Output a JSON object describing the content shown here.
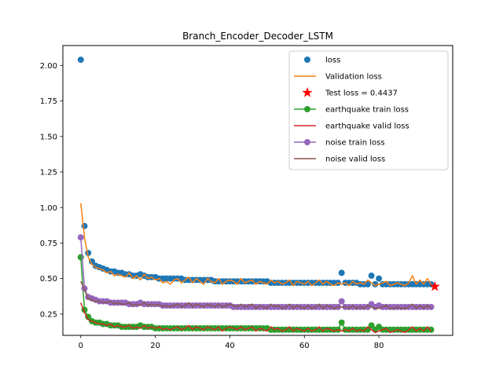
{
  "chart_data": {
    "type": "scatter",
    "title": "Branch_Encoder_Decoder_LSTM",
    "xlabel": "",
    "ylabel": "",
    "xlim": [
      -4.8,
      99.8
    ],
    "ylim": [
      0.1,
      2.14
    ],
    "x_ticks": [
      0,
      20,
      40,
      60,
      80
    ],
    "y_ticks": [
      0.25,
      0.5,
      0.75,
      1.0,
      1.25,
      1.5,
      1.75,
      2.0
    ],
    "x_tick_labels": [
      "0",
      "20",
      "40",
      "60",
      "80"
    ],
    "y_tick_labels": [
      "0.25",
      "0.50",
      "0.75",
      "1.00",
      "1.25",
      "1.50",
      "1.75",
      "2.00"
    ],
    "grid": false,
    "legend_position": "upper right",
    "series": [
      {
        "name": "loss",
        "style": "markers",
        "color": "#1f77b4",
        "x": [
          0,
          1,
          2,
          3,
          4,
          5,
          6,
          7,
          8,
          9,
          10,
          11,
          12,
          13,
          14,
          15,
          16,
          17,
          18,
          19,
          20,
          21,
          22,
          23,
          24,
          25,
          26,
          27,
          28,
          29,
          30,
          31,
          32,
          33,
          34,
          35,
          36,
          37,
          38,
          39,
          40,
          41,
          42,
          43,
          44,
          45,
          46,
          47,
          48,
          49,
          50,
          51,
          52,
          53,
          54,
          55,
          56,
          57,
          58,
          59,
          60,
          61,
          62,
          63,
          64,
          65,
          66,
          67,
          68,
          69,
          70,
          71,
          72,
          73,
          74,
          75,
          76,
          77,
          78,
          79,
          80,
          81,
          82,
          83,
          84,
          85,
          86,
          87,
          88,
          89,
          90,
          91,
          92,
          93,
          94
        ],
        "y": [
          2.04,
          0.87,
          0.68,
          0.62,
          0.59,
          0.58,
          0.57,
          0.56,
          0.55,
          0.55,
          0.54,
          0.54,
          0.53,
          0.53,
          0.52,
          0.52,
          0.53,
          0.52,
          0.51,
          0.51,
          0.51,
          0.5,
          0.5,
          0.5,
          0.5,
          0.5,
          0.5,
          0.5,
          0.49,
          0.49,
          0.49,
          0.49,
          0.49,
          0.49,
          0.49,
          0.49,
          0.48,
          0.48,
          0.48,
          0.48,
          0.48,
          0.48,
          0.48,
          0.48,
          0.48,
          0.48,
          0.48,
          0.48,
          0.48,
          0.48,
          0.48,
          0.47,
          0.47,
          0.47,
          0.47,
          0.47,
          0.47,
          0.47,
          0.47,
          0.47,
          0.47,
          0.47,
          0.47,
          0.47,
          0.47,
          0.47,
          0.47,
          0.47,
          0.47,
          0.47,
          0.54,
          0.47,
          0.47,
          0.47,
          0.47,
          0.46,
          0.46,
          0.46,
          0.52,
          0.46,
          0.5,
          0.46,
          0.46,
          0.46,
          0.46,
          0.46,
          0.46,
          0.46,
          0.46,
          0.46,
          0.46,
          0.46,
          0.46,
          0.46,
          0.46
        ]
      },
      {
        "name": "Validation loss",
        "style": "line",
        "color": "#ff7f0e",
        "x": [
          0,
          1,
          2,
          3,
          4,
          5,
          6,
          7,
          8,
          9,
          10,
          11,
          12,
          13,
          14,
          15,
          16,
          17,
          18,
          19,
          20,
          21,
          22,
          23,
          24,
          25,
          26,
          27,
          28,
          29,
          30,
          31,
          32,
          33,
          34,
          35,
          36,
          37,
          38,
          39,
          40,
          41,
          42,
          43,
          44,
          45,
          46,
          47,
          48,
          49,
          50,
          51,
          52,
          53,
          54,
          55,
          56,
          57,
          58,
          59,
          60,
          61,
          62,
          63,
          64,
          65,
          66,
          67,
          68,
          69,
          70,
          71,
          72,
          73,
          74,
          75,
          76,
          77,
          78,
          79,
          80,
          81,
          82,
          83,
          84,
          85,
          86,
          87,
          88,
          89,
          90,
          91,
          92,
          93,
          94
        ],
        "y": [
          1.03,
          0.79,
          0.65,
          0.6,
          0.58,
          0.57,
          0.56,
          0.54,
          0.55,
          0.52,
          0.53,
          0.52,
          0.51,
          0.54,
          0.5,
          0.52,
          0.49,
          0.53,
          0.5,
          0.51,
          0.49,
          0.5,
          0.47,
          0.48,
          0.46,
          0.49,
          0.5,
          0.47,
          0.49,
          0.51,
          0.47,
          0.5,
          0.48,
          0.46,
          0.5,
          0.48,
          0.47,
          0.5,
          0.46,
          0.48,
          0.49,
          0.48,
          0.46,
          0.5,
          0.47,
          0.48,
          0.49,
          0.46,
          0.48,
          0.47,
          0.46,
          0.49,
          0.47,
          0.48,
          0.46,
          0.47,
          0.49,
          0.45,
          0.48,
          0.47,
          0.46,
          0.48,
          0.45,
          0.47,
          0.49,
          0.46,
          0.48,
          0.46,
          0.45,
          0.47,
          0.46,
          0.47,
          0.45,
          0.48,
          0.46,
          0.47,
          0.46,
          0.49,
          0.47,
          0.45,
          0.46,
          0.47,
          0.48,
          0.45,
          0.46,
          0.47,
          0.46,
          0.45,
          0.47,
          0.52,
          0.46,
          0.49,
          0.46,
          0.5,
          0.46
        ]
      },
      {
        "name": "Test loss = 0.4437",
        "style": "star",
        "color": "#ff0000",
        "x": [
          95
        ],
        "y": [
          0.4437
        ]
      },
      {
        "name": "earthquake train loss",
        "style": "line-markers",
        "color": "#2ca02c",
        "x": [
          0,
          1,
          2,
          3,
          4,
          5,
          6,
          7,
          8,
          9,
          10,
          11,
          12,
          13,
          14,
          15,
          16,
          17,
          18,
          19,
          20,
          21,
          22,
          23,
          24,
          25,
          26,
          27,
          28,
          29,
          30,
          31,
          32,
          33,
          34,
          35,
          36,
          37,
          38,
          39,
          40,
          41,
          42,
          43,
          44,
          45,
          46,
          47,
          48,
          49,
          50,
          51,
          52,
          53,
          54,
          55,
          56,
          57,
          58,
          59,
          60,
          61,
          62,
          63,
          64,
          65,
          66,
          67,
          68,
          69,
          70,
          71,
          72,
          73,
          74,
          75,
          76,
          77,
          78,
          79,
          80,
          81,
          82,
          83,
          84,
          85,
          86,
          87,
          88,
          89,
          90,
          91,
          92,
          93,
          94
        ],
        "y": [
          0.65,
          0.28,
          0.23,
          0.2,
          0.19,
          0.19,
          0.18,
          0.18,
          0.17,
          0.17,
          0.17,
          0.16,
          0.16,
          0.16,
          0.16,
          0.16,
          0.17,
          0.16,
          0.16,
          0.16,
          0.15,
          0.15,
          0.15,
          0.15,
          0.15,
          0.15,
          0.15,
          0.15,
          0.15,
          0.15,
          0.15,
          0.15,
          0.15,
          0.15,
          0.15,
          0.15,
          0.15,
          0.15,
          0.15,
          0.15,
          0.15,
          0.15,
          0.15,
          0.15,
          0.15,
          0.15,
          0.15,
          0.15,
          0.15,
          0.15,
          0.15,
          0.14,
          0.14,
          0.14,
          0.14,
          0.14,
          0.14,
          0.14,
          0.14,
          0.14,
          0.14,
          0.14,
          0.14,
          0.14,
          0.14,
          0.14,
          0.14,
          0.14,
          0.14,
          0.14,
          0.19,
          0.14,
          0.14,
          0.14,
          0.14,
          0.14,
          0.14,
          0.14,
          0.17,
          0.14,
          0.16,
          0.14,
          0.14,
          0.14,
          0.14,
          0.14,
          0.14,
          0.14,
          0.14,
          0.14,
          0.14,
          0.14,
          0.14,
          0.14,
          0.14
        ]
      },
      {
        "name": "earthquake valid loss",
        "style": "line",
        "color": "#d62728",
        "x": [
          0,
          1,
          2,
          3,
          4,
          5,
          6,
          7,
          8,
          9,
          10,
          11,
          12,
          13,
          14,
          15,
          16,
          17,
          18,
          19,
          20,
          21,
          22,
          23,
          24,
          25,
          26,
          27,
          28,
          29,
          30,
          31,
          32,
          33,
          34,
          35,
          36,
          37,
          38,
          39,
          40,
          41,
          42,
          43,
          44,
          45,
          46,
          47,
          48,
          49,
          50,
          51,
          52,
          53,
          54,
          55,
          56,
          57,
          58,
          59,
          60,
          61,
          62,
          63,
          64,
          65,
          66,
          67,
          68,
          69,
          70,
          71,
          72,
          73,
          74,
          75,
          76,
          77,
          78,
          79,
          80,
          81,
          82,
          83,
          84,
          85,
          86,
          87,
          88,
          89,
          90,
          91,
          92,
          93,
          94
        ],
        "y": [
          0.33,
          0.26,
          0.21,
          0.2,
          0.19,
          0.18,
          0.18,
          0.17,
          0.18,
          0.16,
          0.17,
          0.16,
          0.16,
          0.17,
          0.15,
          0.16,
          0.15,
          0.17,
          0.15,
          0.16,
          0.15,
          0.16,
          0.14,
          0.15,
          0.14,
          0.15,
          0.16,
          0.14,
          0.15,
          0.17,
          0.14,
          0.16,
          0.15,
          0.14,
          0.16,
          0.15,
          0.14,
          0.16,
          0.13,
          0.15,
          0.16,
          0.15,
          0.14,
          0.16,
          0.14,
          0.15,
          0.16,
          0.13,
          0.15,
          0.14,
          0.13,
          0.16,
          0.14,
          0.15,
          0.13,
          0.14,
          0.16,
          0.13,
          0.15,
          0.14,
          0.13,
          0.15,
          0.13,
          0.14,
          0.16,
          0.13,
          0.15,
          0.14,
          0.13,
          0.14,
          0.13,
          0.14,
          0.13,
          0.15,
          0.13,
          0.14,
          0.13,
          0.16,
          0.14,
          0.12,
          0.13,
          0.14,
          0.15,
          0.12,
          0.13,
          0.14,
          0.13,
          0.12,
          0.14,
          0.16,
          0.13,
          0.15,
          0.13,
          0.16,
          0.13
        ]
      },
      {
        "name": "noise train loss",
        "style": "line-markers",
        "color": "#9467bd",
        "x": [
          0,
          1,
          2,
          3,
          4,
          5,
          6,
          7,
          8,
          9,
          10,
          11,
          12,
          13,
          14,
          15,
          16,
          17,
          18,
          19,
          20,
          21,
          22,
          23,
          24,
          25,
          26,
          27,
          28,
          29,
          30,
          31,
          32,
          33,
          34,
          35,
          36,
          37,
          38,
          39,
          40,
          41,
          42,
          43,
          44,
          45,
          46,
          47,
          48,
          49,
          50,
          51,
          52,
          53,
          54,
          55,
          56,
          57,
          58,
          59,
          60,
          61,
          62,
          63,
          64,
          65,
          66,
          67,
          68,
          69,
          70,
          71,
          72,
          73,
          74,
          75,
          76,
          77,
          78,
          79,
          80,
          81,
          82,
          83,
          84,
          85,
          86,
          87,
          88,
          89,
          90,
          91,
          92,
          93,
          94
        ],
        "y": [
          0.79,
          0.43,
          0.37,
          0.36,
          0.35,
          0.34,
          0.34,
          0.34,
          0.33,
          0.33,
          0.33,
          0.33,
          0.33,
          0.32,
          0.32,
          0.32,
          0.33,
          0.32,
          0.32,
          0.32,
          0.32,
          0.32,
          0.31,
          0.31,
          0.31,
          0.31,
          0.31,
          0.31,
          0.31,
          0.31,
          0.31,
          0.31,
          0.31,
          0.31,
          0.31,
          0.31,
          0.31,
          0.31,
          0.31,
          0.31,
          0.31,
          0.3,
          0.3,
          0.3,
          0.3,
          0.3,
          0.3,
          0.3,
          0.3,
          0.3,
          0.3,
          0.3,
          0.3,
          0.3,
          0.3,
          0.3,
          0.3,
          0.3,
          0.3,
          0.3,
          0.3,
          0.3,
          0.3,
          0.3,
          0.3,
          0.3,
          0.3,
          0.3,
          0.3,
          0.3,
          0.34,
          0.3,
          0.3,
          0.3,
          0.3,
          0.3,
          0.3,
          0.3,
          0.32,
          0.3,
          0.31,
          0.3,
          0.3,
          0.3,
          0.3,
          0.3,
          0.3,
          0.3,
          0.3,
          0.3,
          0.3,
          0.3,
          0.3,
          0.3,
          0.3
        ]
      },
      {
        "name": "noise valid loss",
        "style": "line",
        "color": "#8c564b",
        "x": [
          0,
          1,
          2,
          3,
          4,
          5,
          6,
          7,
          8,
          9,
          10,
          11,
          12,
          13,
          14,
          15,
          16,
          17,
          18,
          19,
          20,
          21,
          22,
          23,
          24,
          25,
          26,
          27,
          28,
          29,
          30,
          31,
          32,
          33,
          34,
          35,
          36,
          37,
          38,
          39,
          40,
          41,
          42,
          43,
          44,
          45,
          46,
          47,
          48,
          49,
          50,
          51,
          52,
          53,
          54,
          55,
          56,
          57,
          58,
          59,
          60,
          61,
          62,
          63,
          64,
          65,
          66,
          67,
          68,
          69,
          70,
          71,
          72,
          73,
          74,
          75,
          76,
          77,
          78,
          79,
          80,
          81,
          82,
          83,
          84,
          85,
          86,
          87,
          88,
          89,
          90,
          91,
          92,
          93,
          94
        ],
        "y": [
          0.48,
          0.42,
          0.36,
          0.35,
          0.34,
          0.34,
          0.33,
          0.33,
          0.34,
          0.32,
          0.33,
          0.32,
          0.32,
          0.33,
          0.31,
          0.32,
          0.31,
          0.33,
          0.31,
          0.32,
          0.31,
          0.32,
          0.3,
          0.31,
          0.3,
          0.31,
          0.32,
          0.3,
          0.31,
          0.33,
          0.3,
          0.32,
          0.31,
          0.3,
          0.32,
          0.31,
          0.3,
          0.32,
          0.3,
          0.31,
          0.32,
          0.31,
          0.3,
          0.32,
          0.3,
          0.31,
          0.32,
          0.29,
          0.31,
          0.3,
          0.29,
          0.32,
          0.3,
          0.31,
          0.29,
          0.3,
          0.32,
          0.29,
          0.31,
          0.3,
          0.29,
          0.31,
          0.29,
          0.3,
          0.32,
          0.29,
          0.31,
          0.3,
          0.29,
          0.3,
          0.3,
          0.3,
          0.29,
          0.31,
          0.29,
          0.3,
          0.29,
          0.31,
          0.3,
          0.29,
          0.29,
          0.3,
          0.31,
          0.29,
          0.29,
          0.3,
          0.29,
          0.29,
          0.3,
          0.32,
          0.29,
          0.31,
          0.29,
          0.31,
          0.29
        ]
      }
    ]
  }
}
